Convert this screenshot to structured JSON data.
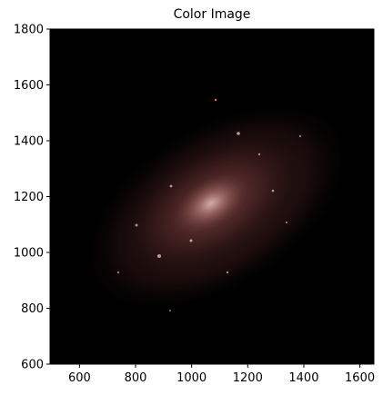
{
  "title": "Color Image",
  "image": {
    "description_icon": "galaxy-image",
    "background_color": "#000000",
    "glow_color": "#6b3a3a"
  },
  "x_axis": {
    "range": [
      495,
      1650
    ],
    "ticks": [
      600,
      800,
      1000,
      1200,
      1400,
      1600
    ],
    "tick_labels": [
      "600",
      "800",
      "1000",
      "1200",
      "1400",
      "1600"
    ]
  },
  "y_axis": {
    "range": [
      600,
      1800
    ],
    "ticks": [
      600,
      800,
      1000,
      1200,
      1400,
      1600,
      1800
    ],
    "tick_labels": [
      "600",
      "800",
      "1000",
      "1200",
      "1400",
      "1600",
      "1800"
    ]
  }
}
